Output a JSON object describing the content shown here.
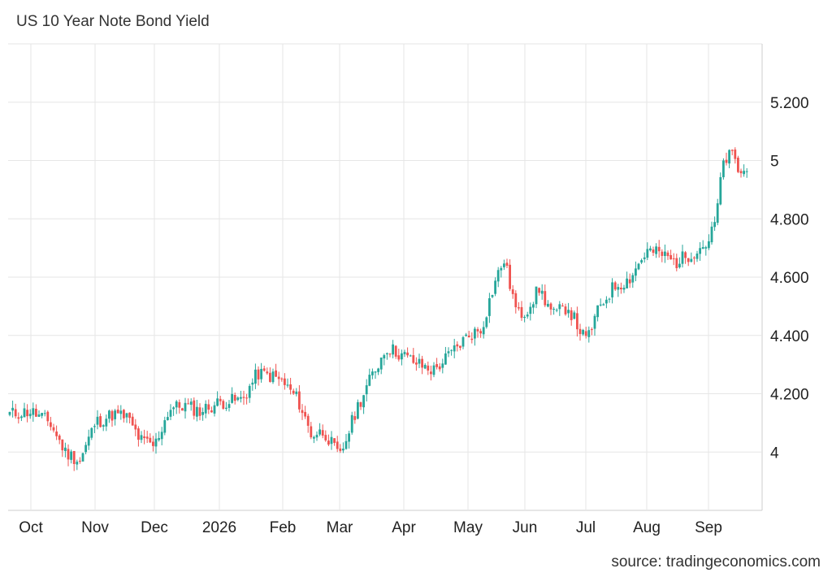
{
  "title": "US 10 Year Note Bond Yield",
  "source": "source: tradingeconomics.com",
  "colors": {
    "up": "#26a69a",
    "down": "#ef5350",
    "grid": "#e6e6e6",
    "axis": "#cccccc",
    "text": "#222222"
  },
  "chart_data": {
    "type": "candlestick",
    "title": "US 10 Year Note Bond Yield",
    "xlabel": "",
    "ylabel": "",
    "ylim": [
      3.8,
      5.4
    ],
    "y_ticks": [
      {
        "value": 4.0,
        "label": "4"
      },
      {
        "value": 4.2,
        "label": "4.200"
      },
      {
        "value": 4.4,
        "label": "4.400"
      },
      {
        "value": 4.6,
        "label": "4.600"
      },
      {
        "value": 4.8,
        "label": "4.800"
      },
      {
        "value": 5.0,
        "label": "5"
      },
      {
        "value": 5.2,
        "label": "5.200"
      }
    ],
    "x_ticks": [
      "Oct",
      "Nov",
      "Dec",
      "2026",
      "Feb",
      "Mar",
      "Apr",
      "May",
      "Jun",
      "Jul",
      "Aug",
      "Sep"
    ],
    "grid": true,
    "approx_close_path": [
      {
        "x": "Sep 22",
        "y": 4.13
      },
      {
        "x": "Oct",
        "y": 4.14
      },
      {
        "x": "Oct 10",
        "y": 4.1
      },
      {
        "x": "Oct 17",
        "y": 4.0
      },
      {
        "x": "Oct 24",
        "y": 3.97
      },
      {
        "x": "Nov",
        "y": 4.1
      },
      {
        "x": "Nov 10",
        "y": 4.13
      },
      {
        "x": "Nov 17",
        "y": 4.12
      },
      {
        "x": "Nov 24",
        "y": 4.04
      },
      {
        "x": "Dec",
        "y": 4.02
      },
      {
        "x": "Dec 8",
        "y": 4.15
      },
      {
        "x": "Dec 15",
        "y": 4.16
      },
      {
        "x": "Dec 22",
        "y": 4.14
      },
      {
        "x": "2026",
        "y": 4.17
      },
      {
        "x": "Jan 12",
        "y": 4.18
      },
      {
        "x": "Jan 19",
        "y": 4.27
      },
      {
        "x": "Jan 26",
        "y": 4.26
      },
      {
        "x": "Feb",
        "y": 4.24
      },
      {
        "x": "Feb 9",
        "y": 4.18
      },
      {
        "x": "Feb 16",
        "y": 4.06
      },
      {
        "x": "Feb 23",
        "y": 4.07
      },
      {
        "x": "Mar",
        "y": 3.98
      },
      {
        "x": "Mar 9",
        "y": 4.15
      },
      {
        "x": "Mar 16",
        "y": 4.26
      },
      {
        "x": "Mar 23",
        "y": 4.36
      },
      {
        "x": "Apr",
        "y": 4.33
      },
      {
        "x": "Apr 8",
        "y": 4.3
      },
      {
        "x": "Apr 15",
        "y": 4.28
      },
      {
        "x": "Apr 22",
        "y": 4.33
      },
      {
        "x": "May",
        "y": 4.4
      },
      {
        "x": "May 8",
        "y": 4.42
      },
      {
        "x": "May 15",
        "y": 4.58
      },
      {
        "x": "May 20",
        "y": 4.66
      },
      {
        "x": "May 27",
        "y": 4.47
      },
      {
        "x": "Jun",
        "y": 4.48
      },
      {
        "x": "Jun 8",
        "y": 4.56
      },
      {
        "x": "Jun 15",
        "y": 4.47
      },
      {
        "x": "Jun 22",
        "y": 4.5
      },
      {
        "x": "Jul",
        "y": 4.38
      },
      {
        "x": "Jul 8",
        "y": 4.5
      },
      {
        "x": "Jul 15",
        "y": 4.57
      },
      {
        "x": "Jul 22",
        "y": 4.59
      },
      {
        "x": "Aug",
        "y": 4.69
      },
      {
        "x": "Aug 8",
        "y": 4.68
      },
      {
        "x": "Aug 15",
        "y": 4.65
      },
      {
        "x": "Aug 22",
        "y": 4.68
      },
      {
        "x": "Sep",
        "y": 4.72
      },
      {
        "x": "Sep 5",
        "y": 4.79
      },
      {
        "x": "Sep 10",
        "y": 5.0
      },
      {
        "x": "Sep 15",
        "y": 5.02
      },
      {
        "x": "Sep 19",
        "y": 4.96
      }
    ]
  }
}
